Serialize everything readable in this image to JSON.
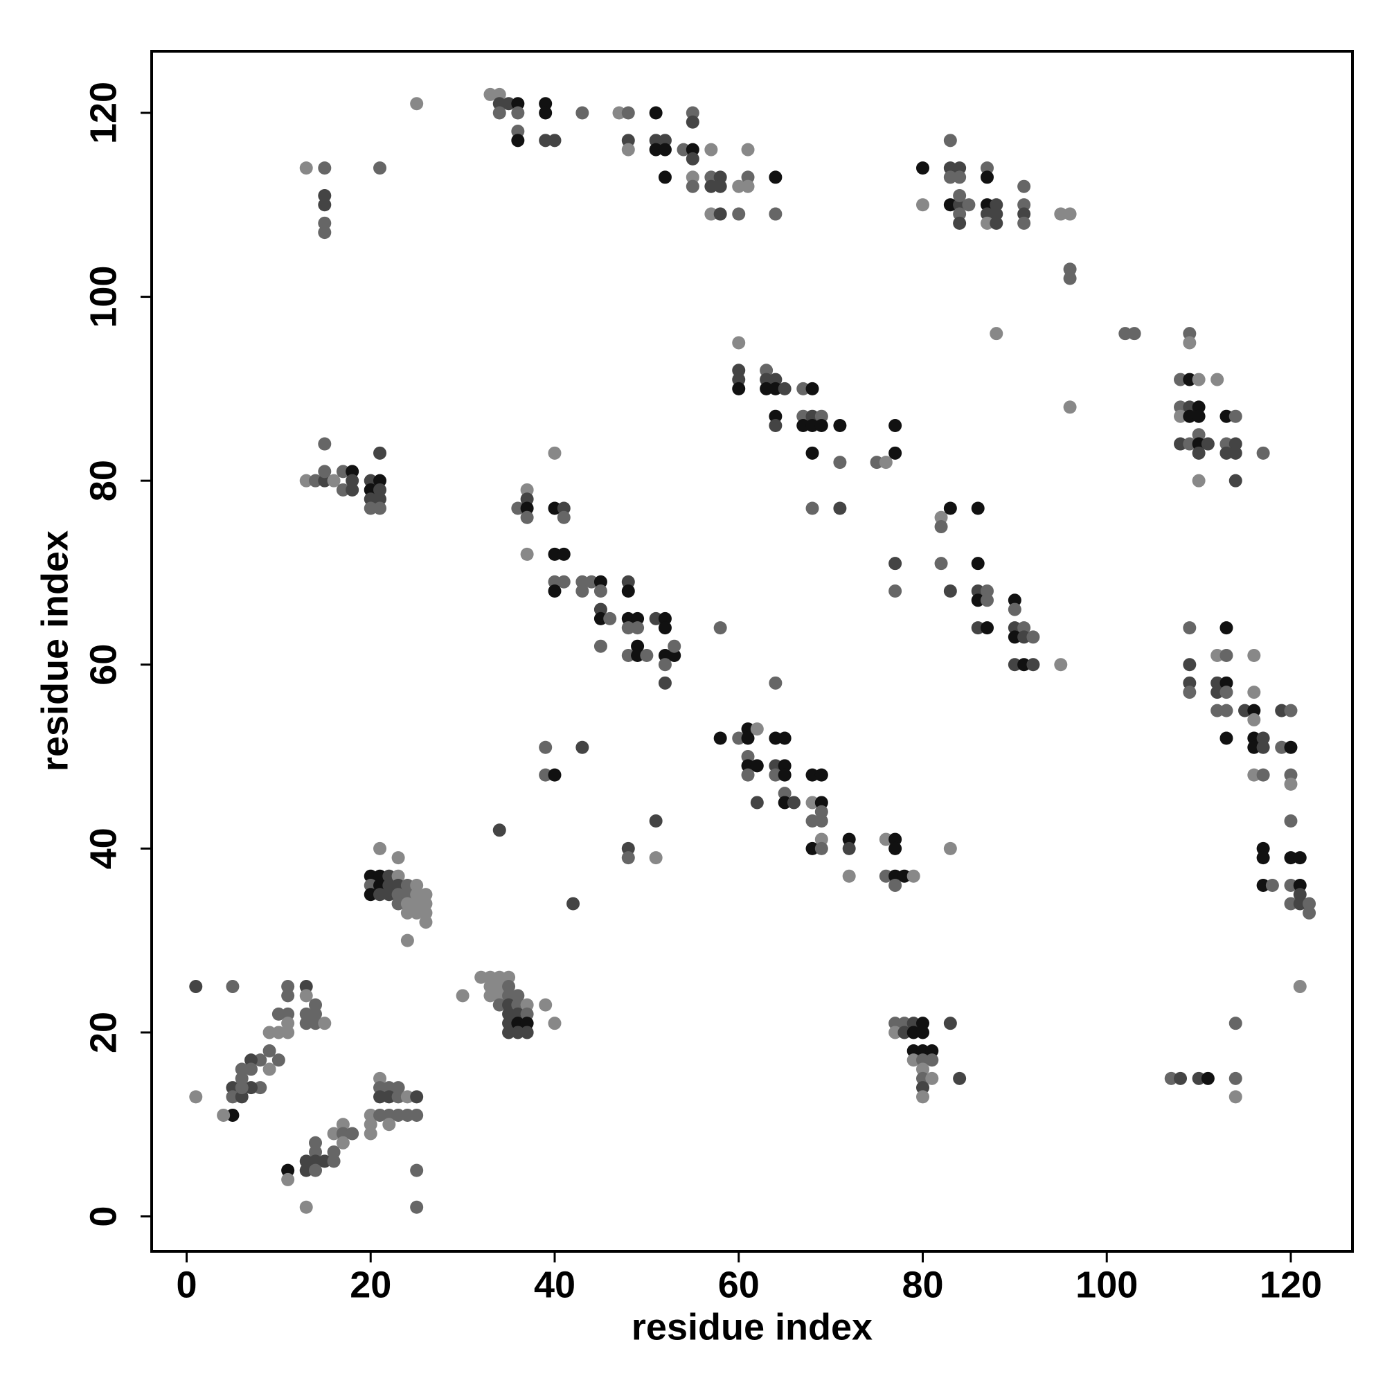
{
  "chart_data": {
    "type": "scatter",
    "xlabel": "residue index",
    "ylabel": "residue index",
    "xlim": [
      -3.8,
      126.7
    ],
    "ylim": [
      -3.8,
      126.7
    ],
    "xticks": [
      0,
      20,
      40,
      60,
      80,
      100,
      120
    ],
    "yticks": [
      0,
      20,
      40,
      60,
      80,
      100,
      120
    ],
    "x": [
      25,
      13,
      15,
      21,
      15,
      15,
      15,
      15,
      33,
      34,
      34,
      35,
      36,
      39,
      34,
      36,
      39,
      43,
      36,
      36,
      39,
      40,
      47,
      48,
      51,
      55,
      48,
      51,
      52,
      48,
      51,
      52,
      54,
      55,
      55,
      55,
      57,
      61,
      52,
      55,
      57,
      58,
      61,
      64,
      55,
      57,
      58,
      60,
      61,
      57,
      58,
      60,
      64,
      83,
      80,
      83,
      84,
      87,
      83,
      84,
      87,
      80,
      83,
      84,
      85,
      87,
      88,
      91,
      91,
      84,
      84,
      87,
      88,
      91,
      84,
      87,
      88,
      91,
      95,
      96,
      96,
      96,
      88,
      102,
      103,
      109,
      109,
      96,
      60,
      60,
      60,
      60,
      63,
      63,
      63,
      64,
      64,
      65,
      67,
      68,
      64,
      64,
      67,
      68,
      69,
      67,
      68,
      69,
      71,
      77,
      68,
      77,
      71,
      75,
      76,
      68,
      71,
      108,
      109,
      110,
      112,
      108,
      109,
      110,
      108,
      109,
      110,
      113,
      114,
      110,
      108,
      109,
      110,
      111,
      113,
      114,
      110,
      113,
      114,
      117,
      110,
      114,
      15,
      13,
      14,
      15,
      15,
      16,
      17,
      18,
      17,
      18,
      18,
      20,
      21,
      21,
      20,
      21,
      20,
      21,
      20,
      21,
      40,
      37,
      36,
      37,
      37,
      37,
      40,
      41,
      41,
      37,
      40,
      41,
      40,
      41,
      40,
      43,
      44,
      45,
      43,
      45,
      45,
      45,
      46,
      48,
      48,
      48,
      49,
      48,
      49,
      45,
      51,
      52,
      52,
      48,
      49,
      49,
      50,
      52,
      53,
      53,
      52,
      52,
      58,
      82,
      82,
      83,
      86,
      77,
      82,
      86,
      77,
      83,
      86,
      86,
      87,
      87,
      86,
      87,
      90,
      90,
      90,
      91,
      90,
      91,
      92,
      90,
      91,
      92,
      95,
      109,
      113,
      109,
      112,
      113,
      109,
      112,
      113,
      109,
      112,
      113,
      112,
      113,
      115,
      116,
      116,
      116,
      116,
      116,
      117,
      116,
      117,
      113,
      116,
      117,
      119,
      120,
      119,
      120,
      120,
      120,
      120,
      117,
      117,
      117,
      118,
      120,
      121,
      120,
      121,
      120,
      121,
      121,
      122,
      122,
      121,
      64,
      58,
      60,
      61,
      61,
      62,
      61,
      61,
      62,
      61,
      64,
      65,
      64,
      65,
      64,
      65,
      62,
      65,
      65,
      66,
      68,
      69,
      68,
      69,
      69,
      68,
      69,
      68,
      69,
      69,
      72,
      72,
      72,
      76,
      77,
      77,
      76,
      77,
      78,
      77,
      79,
      83,
      39,
      39,
      40,
      43,
      34,
      51,
      48,
      48,
      51,
      42,
      21,
      23,
      20,
      21,
      22,
      23,
      20,
      21,
      22,
      23,
      24,
      25,
      20,
      21,
      22,
      23,
      24,
      25,
      26,
      23,
      24,
      25,
      26,
      24,
      25,
      26,
      26,
      24,
      32,
      33,
      34,
      35,
      33,
      34,
      35,
      33,
      34,
      35,
      36,
      30,
      34,
      35,
      36,
      37,
      39,
      35,
      36,
      37,
      35,
      36,
      37,
      40,
      35,
      36,
      37,
      77,
      78,
      79,
      80,
      83,
      77,
      78,
      79,
      80,
      79,
      80,
      81,
      79,
      80,
      81,
      80,
      80,
      81,
      84,
      80,
      80,
      107,
      108,
      110,
      111,
      114,
      114,
      114,
      1,
      5,
      11,
      13,
      11,
      13,
      14,
      11,
      13,
      14,
      10,
      11,
      13,
      14,
      15,
      9,
      10,
      11,
      9,
      10,
      8,
      9,
      7,
      5,
      6,
      7,
      8,
      7,
      6,
      5,
      6,
      6,
      5,
      4,
      1,
      11,
      11,
      13,
      13,
      14,
      14,
      14,
      14,
      15,
      16,
      16,
      16,
      17,
      17,
      17,
      18,
      13,
      20,
      20,
      20,
      21,
      21,
      22,
      23,
      21,
      22,
      23,
      24,
      25,
      21,
      22,
      22,
      23,
      24,
      25,
      25,
      25
    ],
    "y": [
      121,
      114,
      114,
      114,
      111,
      110,
      108,
      107,
      122,
      122,
      121,
      121,
      121,
      121,
      120,
      120,
      120,
      120,
      118,
      117,
      117,
      117,
      120,
      120,
      120,
      120,
      117,
      117,
      117,
      116,
      116,
      116,
      116,
      116,
      119,
      115,
      116,
      116,
      113,
      113,
      113,
      113,
      113,
      113,
      112,
      112,
      112,
      112,
      112,
      109,
      109,
      109,
      109,
      117,
      114,
      114,
      114,
      114,
      113,
      113,
      113,
      110,
      110,
      110,
      110,
      110,
      110,
      112,
      110,
      111,
      109,
      109,
      109,
      109,
      108,
      108,
      108,
      108,
      109,
      109,
      103,
      102,
      96,
      96,
      96,
      96,
      95,
      88,
      95,
      92,
      91,
      90,
      92,
      91,
      90,
      91,
      90,
      90,
      90,
      90,
      87,
      86,
      87,
      87,
      87,
      86,
      86,
      86,
      86,
      86,
      83,
      83,
      82,
      82,
      82,
      77,
      77,
      91,
      91,
      91,
      91,
      88,
      88,
      88,
      87,
      87,
      87,
      87,
      87,
      85,
      84,
      84,
      84,
      84,
      84,
      84,
      83,
      83,
      83,
      83,
      80,
      80,
      84,
      80,
      80,
      80,
      81,
      80,
      81,
      81,
      79,
      79,
      80,
      80,
      80,
      83,
      79,
      79,
      78,
      78,
      77,
      77,
      83,
      79,
      77,
      78,
      77,
      76,
      77,
      77,
      76,
      72,
      72,
      72,
      69,
      69,
      68,
      69,
      69,
      69,
      68,
      68,
      66,
      65,
      65,
      69,
      68,
      65,
      65,
      64,
      64,
      62,
      65,
      65,
      64,
      61,
      62,
      61,
      61,
      61,
      61,
      62,
      60,
      58,
      64,
      76,
      75,
      77,
      77,
      71,
      71,
      71,
      68,
      68,
      68,
      67,
      68,
      67,
      64,
      64,
      67,
      66,
      64,
      64,
      63,
      63,
      63,
      60,
      60,
      60,
      60,
      64,
      64,
      60,
      61,
      61,
      58,
      58,
      58,
      57,
      57,
      57,
      55,
      55,
      55,
      55,
      61,
      57,
      54,
      52,
      52,
      51,
      51,
      52,
      48,
      48,
      55,
      55,
      51,
      51,
      48,
      47,
      43,
      40,
      39,
      36,
      36,
      39,
      39,
      36,
      36,
      34,
      35,
      34,
      34,
      33,
      25,
      58,
      52,
      52,
      53,
      52,
      53,
      50,
      49,
      49,
      48,
      52,
      52,
      49,
      49,
      48,
      48,
      45,
      46,
      45,
      45,
      48,
      48,
      45,
      45,
      44,
      43,
      43,
      40,
      41,
      40,
      41,
      40,
      37,
      41,
      41,
      40,
      37,
      37,
      37,
      36,
      37,
      40,
      51,
      48,
      48,
      51,
      42,
      43,
      40,
      39,
      39,
      34,
      40,
      39,
      37,
      37,
      37,
      37,
      36,
      36,
      36,
      36,
      36,
      36,
      35,
      35,
      35,
      35,
      35,
      35,
      35,
      34,
      34,
      34,
      34,
      33,
      33,
      33,
      32,
      30,
      26,
      26,
      26,
      26,
      25,
      25,
      25,
      24,
      24,
      24,
      24,
      24,
      23,
      23,
      23,
      23,
      23,
      22,
      22,
      22,
      21,
      21,
      21,
      21,
      20,
      20,
      20,
      21,
      21,
      21,
      21,
      21,
      20,
      20,
      20,
      20,
      18,
      18,
      18,
      17,
      17,
      17,
      16,
      15,
      15,
      15,
      14,
      13,
      15,
      15,
      15,
      15,
      21,
      15,
      13,
      25,
      25,
      25,
      25,
      24,
      24,
      23,
      22,
      22,
      22,
      22,
      21,
      21,
      21,
      21,
      20,
      20,
      20,
      18,
      17,
      17,
      16,
      17,
      14,
      16,
      16,
      14,
      14,
      15,
      13,
      13,
      14,
      11,
      11,
      13,
      5,
      4,
      6,
      5,
      8,
      7,
      6,
      5,
      6,
      6,
      7,
      9,
      10,
      9,
      8,
      9,
      1,
      11,
      10,
      9,
      15,
      14,
      14,
      14,
      13,
      13,
      13,
      13,
      13,
      11,
      11,
      10,
      11,
      11,
      11,
      5,
      1
    ],
    "colors": [
      "#888",
      "#888",
      "#666",
      "#666",
      "#444",
      "#444",
      "#666",
      "#666",
      "#888",
      "#888",
      "#444",
      "#444",
      "#111",
      "#111",
      "#666",
      "#666",
      "#111",
      "#666",
      "#666",
      "#111",
      "#444",
      "#444",
      "#888",
      "#666",
      "#111",
      "#666",
      "#444",
      "#444",
      "#444",
      "#888",
      "#111",
      "#111",
      "#666",
      "#111",
      "#444",
      "#444",
      "#888",
      "#888",
      "#111",
      "#888",
      "#666",
      "#444",
      "#666",
      "#111",
      "#666",
      "#444",
      "#444",
      "#888",
      "#888",
      "#888",
      "#444",
      "#666",
      "#666",
      "#666",
      "#111",
      "#444",
      "#444",
      "#666",
      "#666",
      "#666",
      "#111",
      "#888",
      "#111",
      "#444",
      "#666",
      "#111",
      "#444",
      "#666",
      "#666",
      "#666",
      "#666",
      "#444",
      "#444",
      "#444",
      "#444",
      "#888",
      "#444",
      "#666",
      "#888",
      "#888",
      "#666",
      "#666",
      "#888",
      "#666",
      "#666",
      "#666",
      "#888",
      "#888",
      "#888",
      "#444",
      "#444",
      "#111",
      "#666",
      "#444",
      "#111",
      "#444",
      "#111",
      "#444",
      "#666",
      "#111",
      "#111",
      "#444",
      "#666",
      "#444",
      "#666",
      "#111",
      "#111",
      "#111",
      "#111",
      "#111",
      "#111",
      "#111",
      "#666",
      "#666",
      "#888",
      "#666",
      "#444",
      "#666",
      "#111",
      "#888",
      "#888",
      "#666",
      "#444",
      "#111",
      "#888",
      "#111",
      "#111",
      "#111",
      "#666",
      "#666",
      "#444",
      "#666",
      "#111",
      "#444",
      "#666",
      "#444",
      "#444",
      "#444",
      "#444",
      "#666",
      "#888",
      "#444",
      "#666",
      "#888",
      "#666",
      "#444",
      "#666",
      "#888",
      "#666",
      "#111",
      "#666",
      "#444",
      "#444",
      "#444",
      "#111",
      "#444",
      "#111",
      "#444",
      "#444",
      "#444",
      "#666",
      "#666",
      "#888",
      "#888",
      "#666",
      "#444",
      "#111",
      "#666",
      "#111",
      "#444",
      "#666",
      "#888",
      "#111",
      "#111",
      "#666",
      "#666",
      "#111",
      "#666",
      "#666",
      "#111",
      "#666",
      "#666",
      "#444",
      "#111",
      "#666",
      "#444",
      "#111",
      "#111",
      "#111",
      "#666",
      "#666",
      "#666",
      "#444",
      "#111",
      "#111",
      "#666",
      "#111",
      "#111",
      "#666",
      "#111",
      "#111",
      "#666",
      "#666",
      "#444",
      "#666",
      "#888",
      "#666",
      "#111",
      "#111",
      "#444",
      "#666",
      "#111",
      "#666",
      "#444",
      "#444",
      "#111",
      "#666",
      "#666",
      "#444",
      "#111",
      "#111",
      "#666",
      "#444",
      "#666",
      "#111",
      "#444",
      "#666",
      "#444",
      "#111",
      "#444",
      "#888",
      "#666",
      "#111",
      "#444",
      "#888",
      "#666",
      "#444",
      "#444",
      "#111",
      "#666",
      "#444",
      "#666",
      "#666",
      "#666",
      "#444",
      "#111",
      "#888",
      "#888",
      "#888",
      "#111",
      "#444",
      "#111",
      "#444",
      "#111",
      "#888",
      "#666",
      "#444",
      "#666",
      "#666",
      "#111",
      "#666",
      "#888",
      "#666",
      "#111",
      "#111",
      "#111",
      "#666",
      "#111",
      "#111",
      "#666",
      "#111",
      "#666",
      "#444",
      "#444",
      "#666",
      "#666",
      "#888",
      "#666",
      "#111",
      "#666",
      "#111",
      "#111",
      "#888",
      "#666",
      "#111",
      "#111",
      "#666",
      "#111",
      "#111",
      "#444",
      "#111",
      "#666",
      "#111",
      "#444",
      "#666",
      "#111",
      "#444",
      "#111",
      "#111",
      "#888",
      "#111",
      "#666",
      "#666",
      "#666",
      "#111",
      "#888",
      "#666",
      "#111",
      "#444",
      "#888",
      "#888",
      "#111",
      "#111",
      "#666",
      "#111",
      "#111",
      "#666",
      "#888",
      "#888",
      "#666",
      "#666",
      "#111",
      "#444",
      "#444",
      "#444",
      "#444",
      "#666",
      "#888",
      "#444",
      "#888",
      "#888",
      "#111",
      "#111",
      "#444",
      "#888",
      "#666",
      "#111",
      "#444",
      "#444",
      "#666",
      "#888",
      "#111",
      "#444",
      "#444",
      "#666",
      "#666",
      "#888",
      "#888",
      "#666",
      "#888",
      "#888",
      "#888",
      "#888",
      "#888",
      "#888",
      "#888",
      "#888",
      "#888",
      "#888",
      "#888",
      "#888",
      "#888",
      "#888",
      "#666",
      "#888",
      "#888",
      "#666",
      "#666",
      "#888",
      "#666",
      "#444",
      "#666",
      "#888",
      "#888",
      "#444",
      "#444",
      "#666",
      "#444",
      "#111",
      "#111",
      "#888",
      "#444",
      "#444",
      "#444",
      "#666",
      "#666",
      "#444",
      "#111",
      "#444",
      "#888",
      "#444",
      "#111",
      "#111",
      "#111",
      "#111",
      "#111",
      "#888",
      "#666",
      "#666",
      "#888",
      "#666",
      "#888",
      "#444",
      "#444",
      "#888",
      "#666",
      "#444",
      "#444",
      "#111",
      "#666",
      "#666",
      "#888",
      "#444",
      "#666",
      "#666",
      "#444",
      "#666",
      "#888",
      "#666",
      "#666",
      "#666",
      "#666",
      "#666",
      "#888",
      "#666",
      "#666",
      "#888",
      "#888",
      "#888",
      "#888",
      "#666",
      "#666",
      "#666",
      "#888",
      "#444",
      "#444",
      "#666",
      "#666",
      "#666",
      "#444",
      "#666",
      "#666",
      "#444",
      "#666",
      "#111",
      "#888",
      "#888",
      "#111",
      "#888",
      "#444",
      "#444",
      "#666",
      "#666",
      "#444",
      "#666",
      "#444",
      "#666",
      "#666",
      "#888",
      "#888",
      "#666",
      "#888",
      "#666",
      "#888",
      "#888",
      "#888",
      "#888",
      "#888",
      "#666",
      "#666",
      "#666",
      "#444",
      "#444",
      "#666",
      "#888",
      "#444",
      "#666",
      "#666",
      "#888",
      "#666",
      "#666",
      "#666",
      "#666",
      "#666"
    ]
  }
}
